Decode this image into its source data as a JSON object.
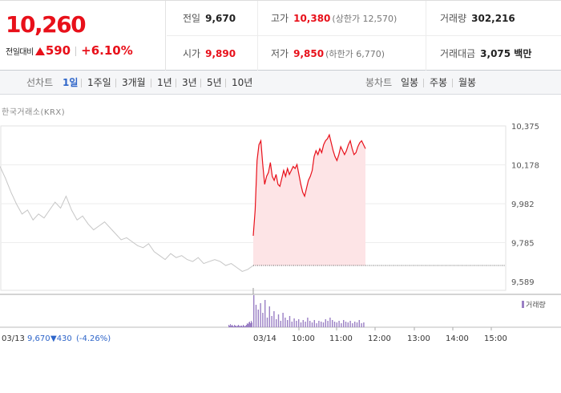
{
  "quote": {
    "current_price": "10,260",
    "change_label": "전일대비",
    "change_amount": "590",
    "change_pct": "+6.10%",
    "prev_close_label": "전일",
    "prev_close": "9,670",
    "open_label": "시가",
    "open": "9,890",
    "high_label": "고가",
    "high": "10,380",
    "upper_limit": "(상한가 12,570)",
    "low_label": "저가",
    "low": "9,850",
    "lower_limit": "(하한가 6,770)",
    "volume_label": "거래량",
    "volume": "302,216",
    "value_label": "거래대금",
    "value": "3,075 백만"
  },
  "tabs": {
    "line_label": "선차트",
    "line": [
      "1일",
      "1주일",
      "3개월",
      "1년",
      "3년",
      "5년",
      "10년"
    ],
    "active": "1일",
    "candle_label": "봉차트",
    "candle": [
      "일봉",
      "주봉",
      "월봉"
    ]
  },
  "chart": {
    "source": "한국거래소(KRX)",
    "volume_legend": "거래량",
    "prev_info_date": "03/13",
    "prev_info_price": "9,670",
    "prev_info_change": "▼430",
    "prev_info_pct": "(-4.26%)",
    "today_label": "03/14"
  },
  "colors": {
    "up": "#e8101a",
    "down": "#2e65c9",
    "prev_line": "#c6c6c6",
    "fill": "#fde4e6",
    "volume": "#9a7fc4"
  },
  "chart_data": {
    "type": "line",
    "y_ticks": [
      "10,375",
      "10,178",
      "9,982",
      "9,785",
      "9,589"
    ],
    "ylim": [
      9589,
      10375
    ],
    "x_ticks": [
      "12:00",
      "13:00",
      "14:00",
      "15:00"
    ],
    "x_ticks_start": [
      "10:00",
      "11:00"
    ],
    "prev_close": 9670,
    "prev_day": [
      10170,
      10110,
      10040,
      9980,
      9930,
      9950,
      9900,
      9930,
      9910,
      9950,
      9990,
      9960,
      10020,
      9950,
      9900,
      9920,
      9880,
      9850,
      9870,
      9890,
      9860,
      9830,
      9800,
      9810,
      9790,
      9770,
      9760,
      9780,
      9740,
      9720,
      9700,
      9730,
      9710,
      9720,
      9700,
      9690,
      9710,
      9680,
      9690,
      9700,
      9690,
      9670,
      9680,
      9660,
      9640,
      9650,
      9670
    ],
    "today": [
      9820,
      9950,
      10200,
      10280,
      10300,
      10180,
      10080,
      10120,
      10140,
      10190,
      10120,
      10100,
      10130,
      10080,
      10070,
      10110,
      10150,
      10120,
      10160,
      10130,
      10150,
      10170,
      10160,
      10180,
      10130,
      10080,
      10040,
      10020,
      10060,
      10100,
      10120,
      10150,
      10220,
      10250,
      10230,
      10260,
      10240,
      10280,
      10300,
      10310,
      10330,
      10290,
      10250,
      10220,
      10200,
      10230,
      10270,
      10250,
      10230,
      10250,
      10280,
      10300,
      10260,
      10230,
      10240,
      10270,
      10290,
      10300,
      10280,
      10260
    ],
    "volume_today": [
      40,
      28,
      22,
      30,
      18,
      34,
      12,
      26,
      14,
      20,
      10,
      16,
      8,
      18,
      12,
      9,
      14,
      7,
      11,
      8,
      10,
      6,
      9,
      7,
      12,
      8,
      6,
      9,
      5,
      8,
      7,
      6,
      10,
      8,
      12,
      9,
      7,
      6,
      8,
      5,
      9,
      7,
      6,
      8,
      5,
      7,
      6,
      9,
      5,
      6
    ],
    "volume_prev": [
      3,
      2,
      4,
      2,
      3,
      2,
      1,
      3,
      2,
      2,
      1,
      2,
      3,
      2,
      1,
      2,
      2,
      1,
      3,
      2,
      1,
      2,
      3,
      5,
      4,
      6,
      7,
      5,
      8,
      6
    ]
  }
}
